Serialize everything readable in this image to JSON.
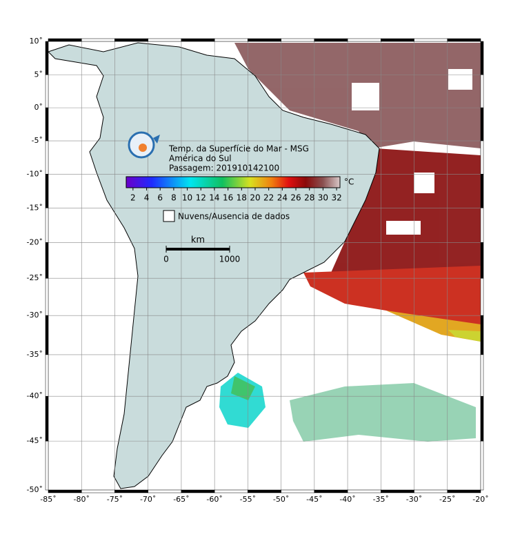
{
  "map": {
    "title_lines": [
      "Temp. da Superfície do Mar - MSG",
      "América do Sul",
      "Passagem: 201910142100"
    ],
    "lon_lim": [
      -85,
      -20
    ],
    "lat_lim": [
      -50,
      10
    ],
    "lon_ticks": [
      {
        "value": -85,
        "label": "-85˚"
      },
      {
        "value": -80,
        "label": "-80˚"
      },
      {
        "value": -75,
        "label": "-75˚"
      },
      {
        "value": -70,
        "label": "-70˚"
      },
      {
        "value": -65,
        "label": "-65˚"
      },
      {
        "value": -60,
        "label": "-60˚"
      },
      {
        "value": -55,
        "label": "-55˚"
      },
      {
        "value": -50,
        "label": "-50˚"
      },
      {
        "value": -45,
        "label": "-45˚"
      },
      {
        "value": -40,
        "label": "-40˚"
      },
      {
        "value": -35,
        "label": "-35˚"
      },
      {
        "value": -30,
        "label": "-30˚"
      },
      {
        "value": -25,
        "label": "-25˚"
      },
      {
        "value": -20,
        "label": "-20˚"
      }
    ],
    "lat_ticks": [
      {
        "value": 10,
        "label": "10˚"
      },
      {
        "value": 5,
        "label": "5˚"
      },
      {
        "value": 0,
        "label": "0˚"
      },
      {
        "value": -5,
        "label": "-5˚"
      },
      {
        "value": -10,
        "label": "-10˚"
      },
      {
        "value": -15,
        "label": "-15˚"
      },
      {
        "value": -20,
        "label": "-20˚"
      },
      {
        "value": -25,
        "label": "-25˚"
      },
      {
        "value": -30,
        "label": "-30˚"
      },
      {
        "value": -35,
        "label": "-35˚"
      },
      {
        "value": -40,
        "label": "-40˚"
      },
      {
        "value": -45,
        "label": "-45˚"
      },
      {
        "value": -50,
        "label": "-50˚"
      }
    ],
    "colorbar": {
      "unit": "°C",
      "range": [
        1,
        32.5
      ],
      "ticks": [
        2,
        4,
        6,
        8,
        10,
        12,
        14,
        16,
        18,
        20,
        22,
        24,
        26,
        28,
        30,
        32
      ]
    },
    "legend_label": "Nuvens/Ausencia de dados",
    "scale_bar": {
      "unit": "km",
      "ticks": [
        0,
        1000
      ]
    }
  }
}
